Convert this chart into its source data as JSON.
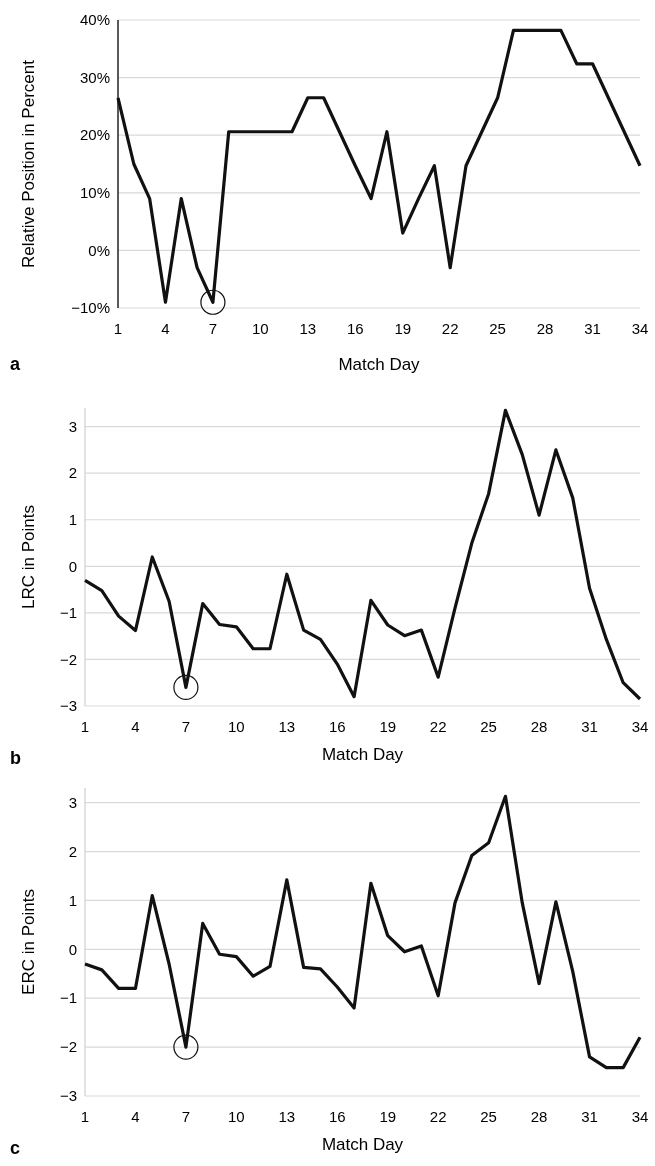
{
  "chart_data": [
    {
      "type": "line",
      "xlabel": "Match Day",
      "ylabel": "Relative Position in Percent",
      "annotations": [
        "a"
      ],
      "x": [
        1,
        2,
        3,
        4,
        5,
        6,
        7,
        8,
        9,
        10,
        11,
        12,
        13,
        14,
        15,
        16,
        17,
        18,
        19,
        20,
        21,
        22,
        23,
        24,
        25,
        26,
        27,
        28,
        29,
        30,
        31,
        32,
        33,
        34
      ],
      "series": [
        {
          "color": "#111111",
          "values": [
            26.5,
            15,
            9,
            -9,
            9,
            -3,
            -9,
            20.6,
            20.6,
            20.6,
            20.6,
            20.6,
            26.5,
            26.5,
            20.6,
            14.7,
            9,
            20.6,
            3,
            9,
            14.7,
            -3,
            14.7,
            20.6,
            26.5,
            38.2,
            38.2,
            38.2,
            38.2,
            32.4,
            32.4,
            26.5,
            20.6,
            14.7
          ]
        }
      ],
      "xlim": [
        1,
        34
      ],
      "xticks": [
        1,
        4,
        7,
        10,
        13,
        16,
        19,
        22,
        25,
        28,
        31,
        34
      ],
      "ylim": [
        -10,
        40
      ],
      "yticks": [
        {
          "value": -10,
          "label": "−10%"
        },
        {
          "value": 0,
          "label": "0%"
        },
        {
          "value": 10,
          "label": "10%"
        },
        {
          "value": 20,
          "label": "20%"
        },
        {
          "value": 30,
          "label": "30%"
        },
        {
          "value": 40,
          "label": "40%"
        }
      ],
      "grid": "y",
      "marker": "none",
      "line_style": "solid"
    },
    {
      "type": "line",
      "xlabel": "Match Day",
      "ylabel": "LRC in Points",
      "annotations": [
        "b"
      ],
      "x": [
        1,
        2,
        3,
        4,
        5,
        6,
        7,
        8,
        9,
        10,
        11,
        12,
        13,
        14,
        15,
        16,
        17,
        18,
        19,
        20,
        21,
        22,
        23,
        24,
        25,
        26,
        27,
        28,
        29,
        30,
        31,
        32,
        33,
        34
      ],
      "series": [
        {
          "color": "#111111",
          "values": [
            -0.3,
            -0.52,
            -1.07,
            -1.38,
            0.2,
            -0.75,
            -2.6,
            -0.8,
            -1.25,
            -1.3,
            -1.77,
            -1.77,
            -0.17,
            -1.37,
            -1.57,
            -2.1,
            -2.8,
            -0.73,
            -1.26,
            -1.49,
            -1.37,
            -2.38,
            -0.9,
            0.5,
            1.56,
            3.35,
            2.4,
            1.1,
            2.5,
            1.47,
            -0.47,
            -1.57,
            -2.5,
            -2.85
          ]
        }
      ],
      "xlim": [
        1,
        34
      ],
      "xticks": [
        1,
        4,
        7,
        10,
        13,
        16,
        19,
        22,
        25,
        28,
        31,
        34
      ],
      "ylim": [
        -3,
        3.4
      ],
      "yticks": [
        {
          "value": -3,
          "label": "−3"
        },
        {
          "value": -2,
          "label": "−2"
        },
        {
          "value": -1,
          "label": "−1"
        },
        0,
        1,
        2,
        3
      ],
      "grid": "y",
      "marker": "none",
      "line_style": "solid"
    },
    {
      "type": "line",
      "xlabel": "Match Day",
      "ylabel": "ERC in Points",
      "annotations": [
        "c"
      ],
      "x": [
        1,
        2,
        3,
        4,
        5,
        6,
        7,
        8,
        9,
        10,
        11,
        12,
        13,
        14,
        15,
        16,
        17,
        18,
        19,
        20,
        21,
        22,
        23,
        24,
        25,
        26,
        27,
        28,
        29,
        30,
        31,
        32,
        33,
        34
      ],
      "series": [
        {
          "color": "#111111",
          "values": [
            -0.3,
            -0.42,
            -0.8,
            -0.8,
            1.1,
            -0.3,
            -2.0,
            0.53,
            -0.1,
            -0.15,
            -0.55,
            -0.35,
            1.42,
            -0.37,
            -0.4,
            -0.77,
            -1.2,
            1.35,
            0.28,
            -0.05,
            0.07,
            -0.95,
            0.95,
            1.92,
            2.18,
            3.13,
            0.95,
            -0.7,
            0.97,
            -0.45,
            -2.2,
            -2.42,
            -2.42,
            -1.8
          ]
        }
      ],
      "xlim": [
        1,
        34
      ],
      "xticks": [
        1,
        4,
        7,
        10,
        13,
        16,
        19,
        22,
        25,
        28,
        31,
        34
      ],
      "ylim": [
        -3,
        3.3
      ],
      "yticks": [
        {
          "value": -3,
          "label": "−3"
        },
        {
          "value": -2,
          "label": "−2"
        },
        {
          "value": -1,
          "label": "−1"
        },
        0,
        1,
        2,
        3
      ],
      "grid": "y",
      "marker": "none",
      "line_style": "solid"
    }
  ]
}
